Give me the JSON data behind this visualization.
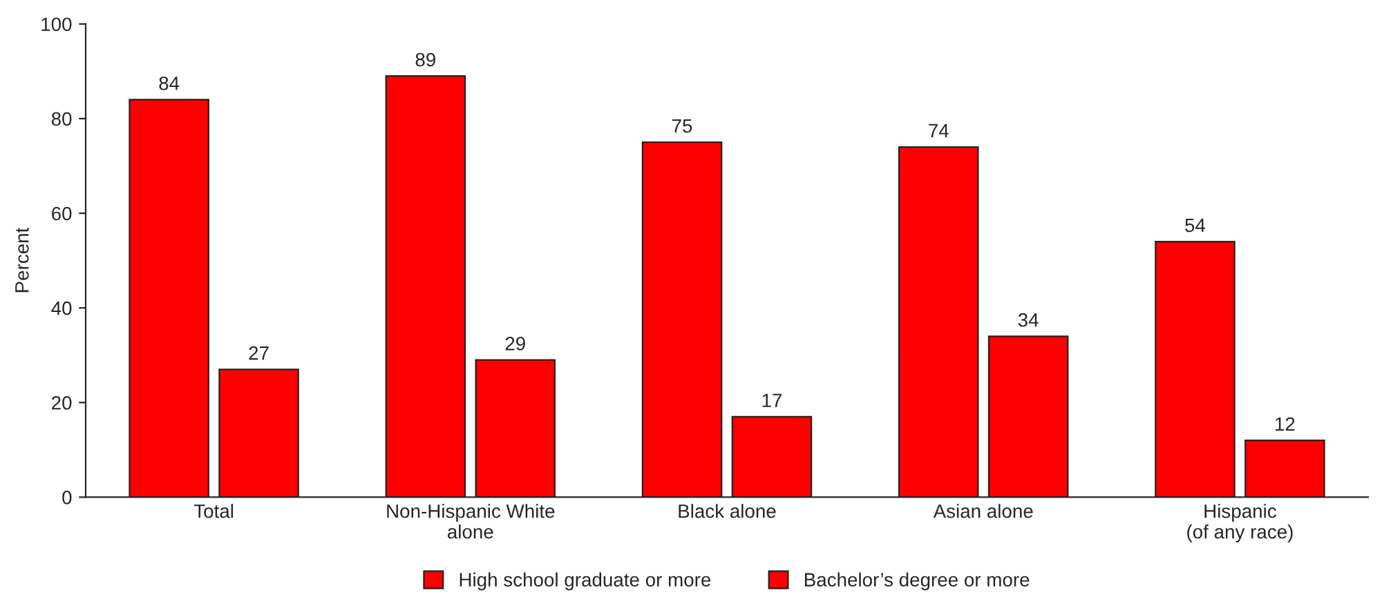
{
  "chart_data": {
    "type": "bar",
    "ylabel": "Percent",
    "categories": [
      "Total",
      "Non-Hispanic White\nalone",
      "Black alone",
      "Asian alone",
      "Hispanic\n(of any race)"
    ],
    "series": [
      {
        "name": "High school graduate or more",
        "color": "#ff0000",
        "values": [
          84,
          89,
          75,
          74,
          54
        ]
      },
      {
        "name": "Bachelor’s degree or more",
        "color": "#ff0000",
        "values": [
          27,
          29,
          17,
          34,
          12
        ]
      }
    ],
    "ylim": [
      0,
      100
    ],
    "yticks": [
      0,
      20,
      40,
      60,
      80,
      100
    ],
    "grid": false,
    "legend": "bottom",
    "data_labels": true
  }
}
